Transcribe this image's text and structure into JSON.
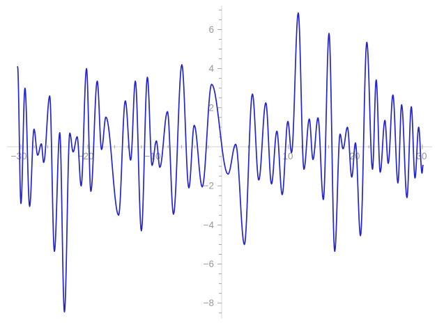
{
  "chart_data": {
    "type": "line",
    "title": "",
    "xlabel": "",
    "ylabel": "",
    "legend": null,
    "grid": false,
    "curve_color": "#2323cf",
    "axis_color": "#d6d6d6",
    "tick_color": "#a5a5a5",
    "label_color": "#999999",
    "background_color": "#ffffff",
    "x_tick_labels": [
      "-30",
      "-20",
      "-10",
      "10",
      "20",
      "30"
    ],
    "y_tick_labels": [
      "6",
      "4",
      "2",
      "-2",
      "-4",
      "-6",
      "-8"
    ],
    "x_major_step": 10,
    "x_minor_step": 2,
    "y_major_step": 2,
    "y_minor_step": 0.5,
    "x_tick_range": [
      -30,
      30
    ],
    "y_tick_range": [
      -8.5,
      7
    ],
    "xlim": [
      -33.13,
      32.19
    ],
    "ylim": [
      -9.22,
      7.51
    ],
    "points": [
      [
        -30.5,
        4.1
      ],
      [
        -30.0,
        -2.9
      ],
      [
        -29.4,
        3.0
      ],
      [
        -28.7,
        -3.05
      ],
      [
        -28.05,
        0.9
      ],
      [
        -27.5,
        -0.43
      ],
      [
        -26.95,
        0.15
      ],
      [
        -26.6,
        -0.8
      ],
      [
        -25.7,
        2.6
      ],
      [
        -25.0,
        -5.35
      ],
      [
        -24.2,
        0.72
      ],
      [
        -23.5,
        -8.45
      ],
      [
        -22.7,
        0.7
      ],
      [
        -22.2,
        -0.26
      ],
      [
        -21.6,
        0.51
      ],
      [
        -21.0,
        -2.0
      ],
      [
        -20.2,
        4.0
      ],
      [
        -19.55,
        -2.28
      ],
      [
        -18.6,
        3.36
      ],
      [
        -17.95,
        -0.14
      ],
      [
        -17.3,
        1.52
      ],
      [
        -15.4,
        -3.5
      ],
      [
        -14.4,
        2.35
      ],
      [
        -13.6,
        -0.68
      ],
      [
        -12.9,
        3.36
      ],
      [
        -12.0,
        -4.3
      ],
      [
        -11.1,
        3.56
      ],
      [
        -10.4,
        -0.95
      ],
      [
        -9.76,
        0.3
      ],
      [
        -9.24,
        -1.05
      ],
      [
        -8.1,
        1.8
      ],
      [
        -7.2,
        -3.45
      ],
      [
        -5.95,
        4.2
      ],
      [
        -4.9,
        -2.1
      ],
      [
        -4.1,
        1.1
      ],
      [
        -2.9,
        -2.05
      ],
      [
        -1.5,
        3.2
      ],
      [
        0.95,
        -1.4
      ],
      [
        2.1,
        0.13
      ],
      [
        3.4,
        -5.0
      ],
      [
        4.6,
        2.7
      ],
      [
        5.55,
        -1.7
      ],
      [
        6.6,
        2.25
      ],
      [
        7.45,
        -1.9
      ],
      [
        8.25,
        0.8
      ],
      [
        9.05,
        -2.45
      ],
      [
        9.9,
        1.3
      ],
      [
        10.45,
        -0.3
      ],
      [
        11.45,
        6.85
      ],
      [
        12.3,
        -1.15
      ],
      [
        13.1,
        1.42
      ],
      [
        13.65,
        -0.65
      ],
      [
        14.4,
        1.48
      ],
      [
        15.2,
        -2.7
      ],
      [
        16.05,
        5.8
      ],
      [
        16.9,
        -5.35
      ],
      [
        17.7,
        0.65
      ],
      [
        18.15,
        -0.1
      ],
      [
        18.8,
        1.0
      ],
      [
        19.45,
        -1.55
      ],
      [
        20.0,
        0.2
      ],
      [
        20.75,
        -4.55
      ],
      [
        21.7,
        5.35
      ],
      [
        22.55,
        -1.15
      ],
      [
        23.1,
        3.42
      ],
      [
        23.7,
        -1.3
      ],
      [
        24.4,
        1.35
      ],
      [
        24.9,
        -0.85
      ],
      [
        25.6,
        2.65
      ],
      [
        26.35,
        -1.85
      ],
      [
        26.9,
        2.15
      ],
      [
        27.7,
        -2.6
      ],
      [
        28.35,
        2.05
      ],
      [
        28.9,
        -1.6
      ],
      [
        29.45,
        1.0
      ],
      [
        29.95,
        -1.35
      ],
      [
        30.1,
        -0.95
      ]
    ]
  }
}
